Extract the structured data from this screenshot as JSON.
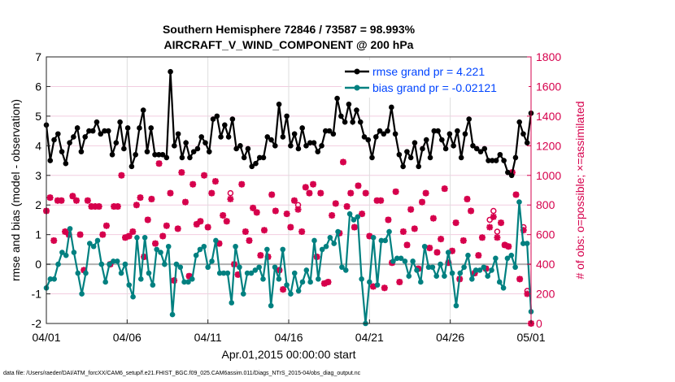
{
  "chart_data": {
    "type": "line",
    "title": "Southern Hemisphere 72846 / 73587 = 98.993%",
    "subtitle": "AIRCRAFT_V_WIND_COMPONENT @ 200 hPa",
    "xlabel": "Apr.01,2015 00:00:00 start",
    "ylabel": "rmse and bias (model - observation)",
    "ylabel_right": "# of obs: o=possible; ×=assimilated",
    "footnote": "data file: /Users/raeder/DAI/ATM_forcXX/CAM6_setup/f.e21.FHIST_BGC.f09_025.CAM6assim.011/Diags_NTrS_2015-04/obs_diag_output.nc",
    "x_range_days": [
      0,
      30
    ],
    "x_ticks": [
      "04/01",
      "04/06",
      "04/11",
      "04/16",
      "04/21",
      "04/26",
      "05/01"
    ],
    "ylim": [
      -2,
      7
    ],
    "y_ticks": [
      "-2",
      "-1",
      "0",
      "1",
      "2",
      "3",
      "4",
      "5",
      "6",
      "7"
    ],
    "ylim_right": [
      0,
      1800
    ],
    "y_ticks_right": [
      "0",
      "200",
      "400",
      "600",
      "800",
      "1000",
      "1200",
      "1400",
      "1600",
      "1800"
    ],
    "grid": true,
    "legend_placement": "top-right",
    "colors": {
      "rmse": "#000000",
      "bias": "#008080",
      "obs": "#D6004C",
      "legend_text": "#0044FF",
      "zero": "#b0b0b0"
    },
    "series": [
      {
        "name": "rmse grand pr = 4.221",
        "axis": "left",
        "values": [
          4.7,
          3.5,
          4.2,
          4.4,
          3.8,
          3.4,
          4.1,
          4.3,
          4.6,
          3.8,
          4.3,
          4.5,
          4.5,
          4.8,
          4.4,
          4.5,
          4.5,
          3.7,
          4.1,
          4.8,
          3.9,
          4.6,
          3.3,
          3.7,
          4.6,
          5.2,
          3.8,
          4.6,
          3.7,
          3.7,
          3.7,
          3.6,
          6.5,
          4.0,
          4.4,
          3.6,
          4.1,
          3.6,
          3.8,
          3.9,
          4.3,
          4.1,
          3.8,
          4.9,
          5.0,
          4.3,
          4.7,
          4.3,
          4.9,
          3.9,
          4.0,
          3.6,
          3.9,
          3.3,
          3.4,
          3.6,
          3.6,
          4.3,
          4.2,
          4.0,
          5.4,
          4.3,
          5.0,
          4.0,
          4.4,
          3.9,
          4.6,
          4.0,
          4.1,
          4.1,
          3.8,
          4.0,
          4.5,
          4.5,
          4.4,
          5.6,
          5.0,
          4.8,
          5.4,
          4.8,
          5.2,
          4.8,
          4.3,
          4.2,
          3.6,
          4.3,
          4.5,
          4.4,
          4.5,
          5.3,
          4.4,
          3.7,
          3.3,
          3.8,
          3.6,
          4.1,
          3.3,
          3.9,
          4.2,
          3.6,
          4.5,
          4.5,
          4.2,
          3.9,
          4.4,
          4.0,
          4.5,
          3.6,
          4.4,
          4.9,
          4.0,
          3.9,
          3.8,
          3.9,
          3.5,
          3.5,
          3.5,
          3.7,
          3.5,
          3.1,
          3.0,
          3.6,
          4.8,
          4.4,
          4.1,
          5.1
        ]
      },
      {
        "name": "bias grand pr = -0.02121",
        "axis": "left",
        "values": [
          -0.8,
          -0.5,
          -0.5,
          0.0,
          0.4,
          0.3,
          1.2,
          0.4,
          -0.3,
          -1.0,
          -0.3,
          0.7,
          0.6,
          0.8,
          0.0,
          -0.6,
          0.0,
          0.1,
          0.1,
          -0.3,
          0.0,
          -0.7,
          -1.1,
          0.9,
          -0.5,
          0.9,
          -0.3,
          -0.7,
          0.5,
          0.4,
          0.0,
          0.6,
          -1.7,
          0.0,
          -0.1,
          -0.6,
          -0.6,
          -0.5,
          0.3,
          0.5,
          0.6,
          -0.1,
          0.1,
          0.8,
          -0.3,
          -0.3,
          -0.3,
          -1.3,
          0.6,
          -0.1,
          -1.0,
          -0.3,
          -0.3,
          -0.2,
          -0.1,
          -0.5,
          0.5,
          -1.4,
          -0.1,
          -0.5,
          0.5,
          -0.7,
          -1.0,
          -0.3,
          -0.9,
          -0.6,
          -0.2,
          -0.6,
          0.8,
          -0.5,
          0.5,
          0.6,
          0.9,
          0.7,
          1.1,
          -0.1,
          -0.2,
          1.7,
          1.5,
          1.6,
          -0.5,
          -2.0,
          -0.6,
          0.9,
          -0.7,
          0.8,
          0.8,
          1.1,
          0.1,
          0.2,
          0.2,
          0.1,
          -0.4,
          0.1,
          -0.2,
          -0.6,
          0.6,
          -0.1,
          -0.1,
          -0.4,
          0.0,
          -0.4,
          0.4,
          -0.3,
          -1.4,
          -0.3,
          -0.1,
          0.3,
          -0.5,
          -0.2,
          -0.2,
          -0.1,
          -0.4,
          -0.2,
          0.2,
          -0.6,
          -0.8,
          0.2,
          0.3,
          -0.1,
          2.1,
          0.7,
          0.7,
          -1.6
        ]
      },
      {
        "name": "assimilated",
        "axis": "right",
        "values": [
          760,
          850,
          560,
          830,
          830,
          620,
          600,
          860,
          830,
          600,
          360,
          830,
          790,
          790,
          790,
          600,
          660,
          400,
          790,
          790,
          1000,
          580,
          590,
          620,
          800,
          850,
          450,
          700,
          840,
          540,
          1080,
          590,
          660,
          880,
          290,
          640,
          1020,
          820,
          320,
          940,
          670,
          690,
          1000,
          650,
          880,
          960,
          540,
          730,
          690,
          840,
          400,
          330,
          940,
          620,
          560,
          780,
          750,
          460,
          630,
          450,
          870,
          760,
          360,
          230,
          740,
          650,
          830,
          770,
          620,
          920,
          880,
          940,
          450,
          880,
          270,
          280,
          730,
          810,
          610,
          1090,
          790,
          880,
          650,
          930,
          740,
          880,
          590,
          250,
          830,
          830,
          240,
          700,
          410,
          890,
          280,
          620,
          530,
          770,
          640,
          370,
          820,
          880,
          510,
          710,
          480,
          570,
          910,
          410,
          490,
          680,
          300,
          560,
          840,
          760,
          340,
          460,
          580,
          370,
          650,
          720,
          580,
          680,
          530,
          520,
          1020,
          870,
          300,
          630,
          200,
          0
        ]
      },
      {
        "name": "possible",
        "axis": "right",
        "values": [
          760,
          850,
          560,
          830,
          830,
          620,
          600,
          860,
          830,
          600,
          360,
          830,
          790,
          790,
          790,
          600,
          660,
          400,
          790,
          790,
          1000,
          580,
          590,
          620,
          800,
          850,
          450,
          700,
          840,
          540,
          1080,
          590,
          660,
          880,
          290,
          640,
          1020,
          820,
          320,
          940,
          670,
          690,
          1000,
          650,
          880,
          960,
          540,
          730,
          690,
          880,
          400,
          330,
          940,
          620,
          560,
          780,
          750,
          460,
          630,
          450,
          870,
          760,
          360,
          230,
          740,
          650,
          830,
          800,
          620,
          920,
          880,
          940,
          450,
          880,
          270,
          280,
          730,
          810,
          610,
          1090,
          790,
          880,
          650,
          930,
          740,
          880,
          590,
          250,
          830,
          830,
          240,
          700,
          410,
          890,
          280,
          620,
          530,
          770,
          640,
          370,
          820,
          880,
          510,
          710,
          480,
          570,
          910,
          410,
          490,
          680,
          300,
          560,
          840,
          760,
          340,
          460,
          580,
          370,
          700,
          760,
          620,
          680,
          530,
          520,
          1020,
          870,
          300,
          650,
          220,
          0
        ]
      }
    ]
  }
}
